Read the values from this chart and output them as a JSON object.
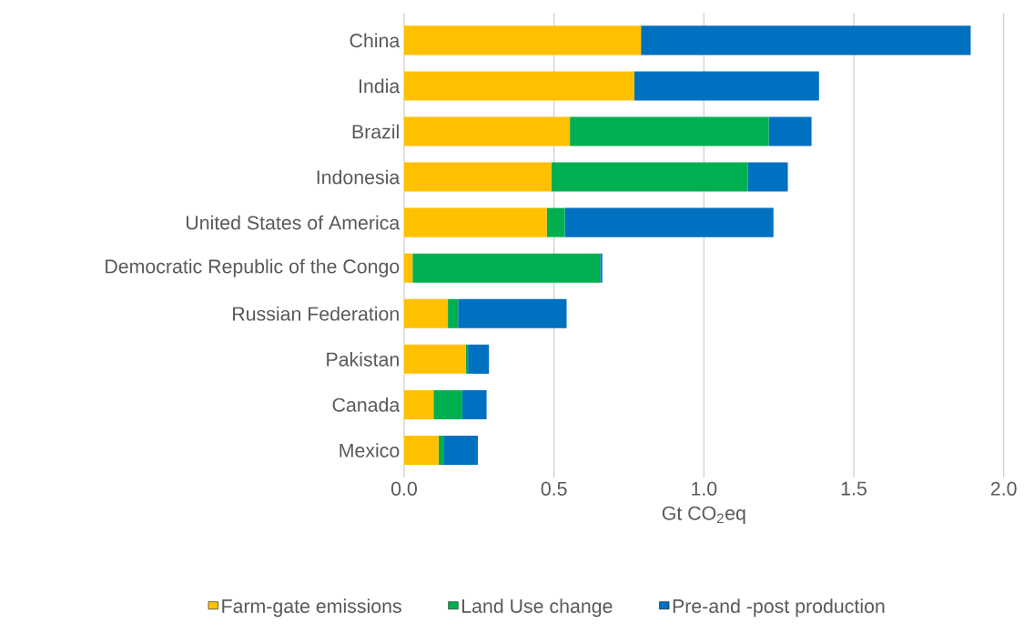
{
  "chart_data": {
    "type": "bar",
    "orientation": "horizontal",
    "stacked": true,
    "categories": [
      "China",
      "India",
      "Brazil",
      "Indonesia",
      "United States of America",
      "Democratic Republic of the Congo",
      "Russian Federation",
      "Pakistan",
      "Canada",
      "Mexico"
    ],
    "series": [
      {
        "name": "Farm-gate emissions",
        "color": "#ffc000",
        "values": [
          0.79,
          0.768,
          0.553,
          0.491,
          0.476,
          0.028,
          0.146,
          0.206,
          0.098,
          0.115
        ]
      },
      {
        "name": "Land Use change",
        "color": "#00b050",
        "values": [
          0,
          0,
          0.663,
          0.656,
          0.06,
          0.626,
          0.034,
          0.007,
          0.096,
          0.016
        ]
      },
      {
        "name": "Pre-and -post production",
        "color": "#0070c0",
        "values": [
          1.1,
          0.616,
          0.143,
          0.133,
          0.696,
          0.007,
          0.362,
          0.07,
          0.081,
          0.115
        ]
      }
    ],
    "xlabel": "Gt CO$_{2}$eq",
    "xlim": [
      0,
      2.0
    ],
    "xticks": [
      {
        "value": 0,
        "label": "0.0"
      },
      {
        "value": 0.5,
        "label": "0.5"
      },
      {
        "value": 1.0,
        "label": "1.0"
      },
      {
        "value": 1.5,
        "label": "1.5"
      },
      {
        "value": 2.0,
        "label": "2.0"
      }
    ],
    "grid": "x",
    "legend": "bottom"
  }
}
